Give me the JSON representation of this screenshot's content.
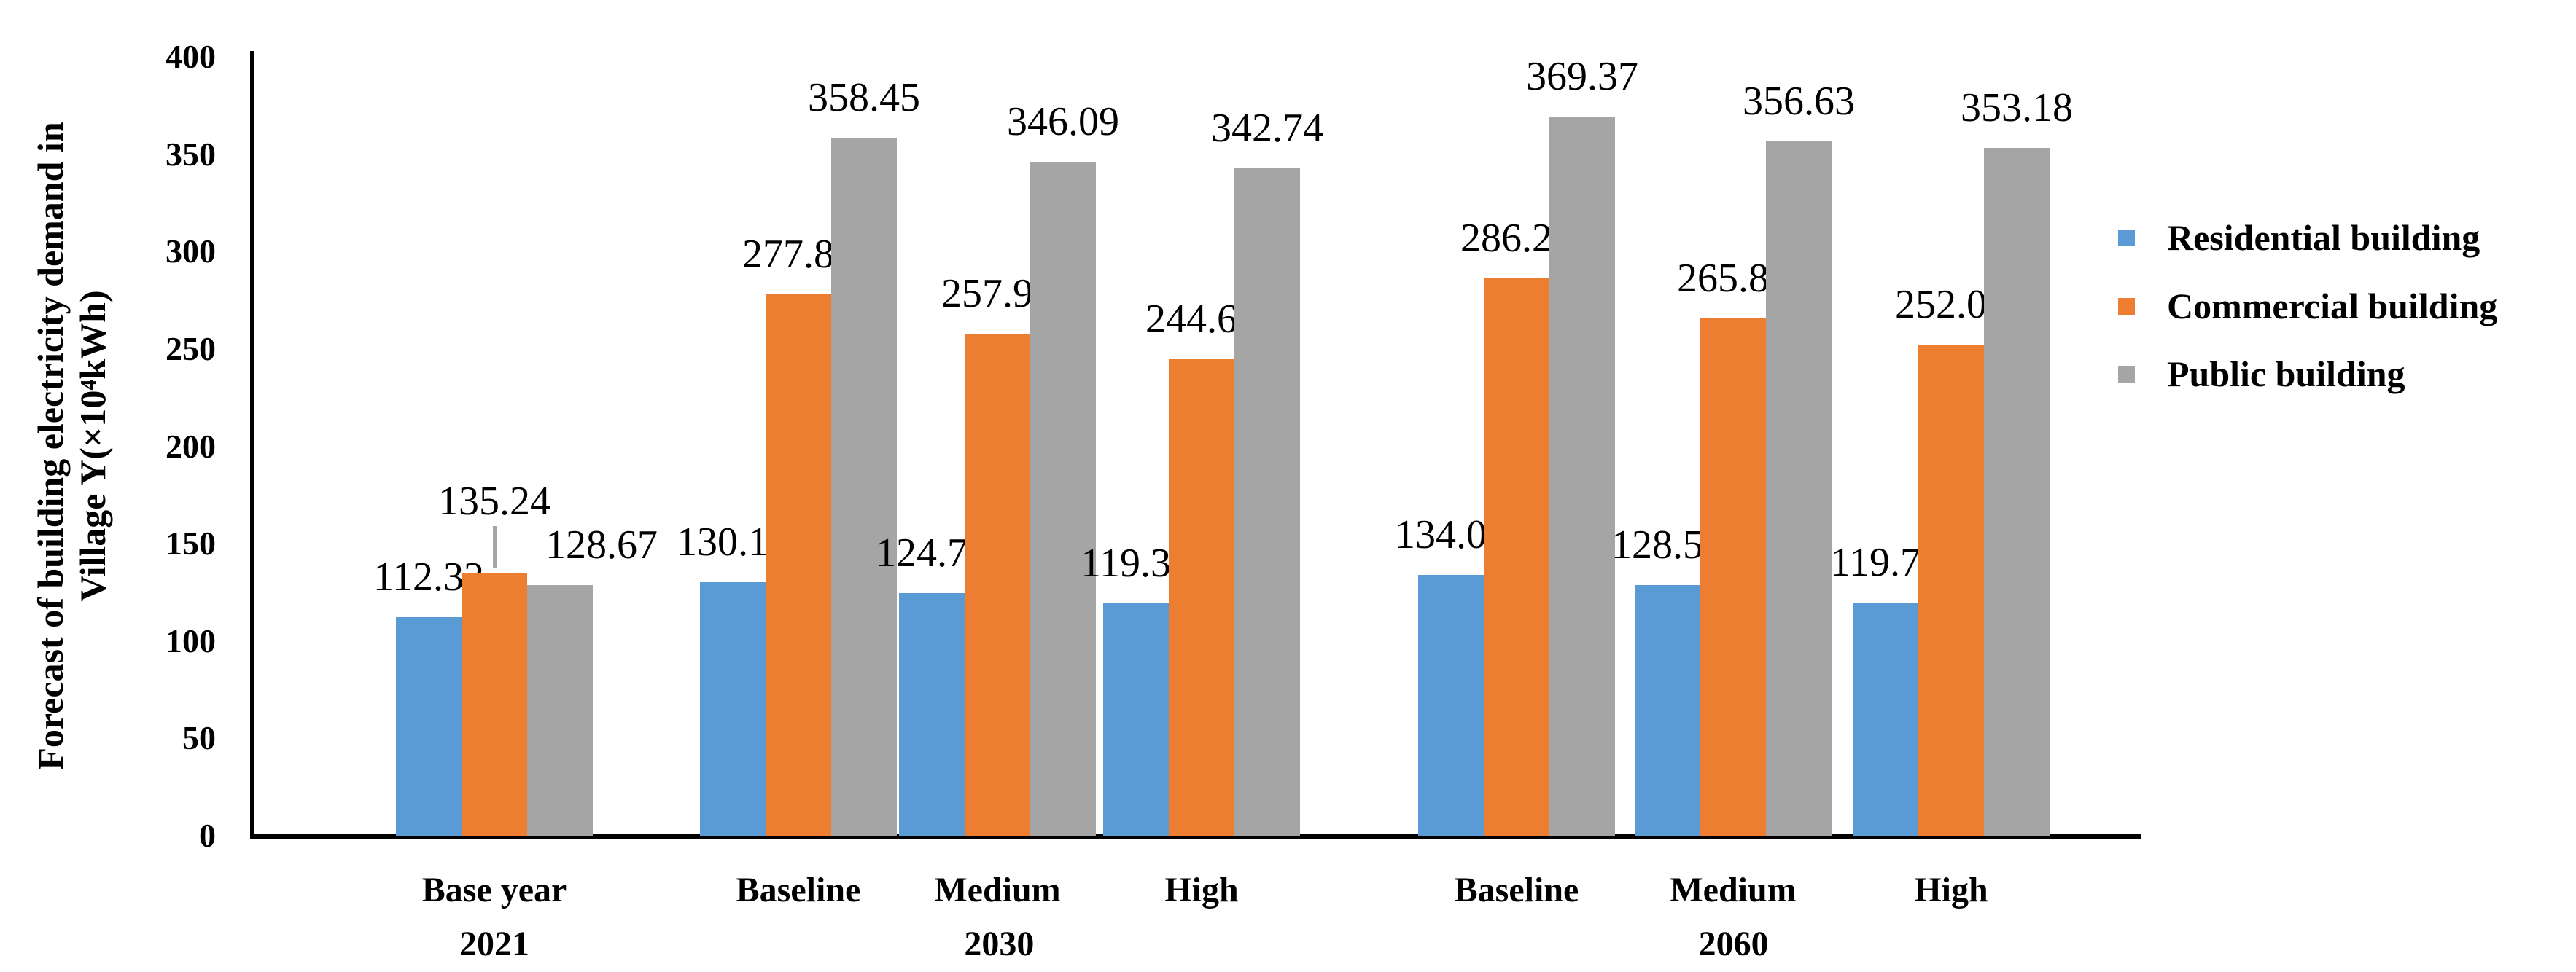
{
  "y_axis": {
    "title_line1": "Forecast of building electricity demand in",
    "title_line2": "Village Y(×10⁴kWh)",
    "ticks": [
      "0",
      "50",
      "100",
      "150",
      "200",
      "250",
      "300",
      "350",
      "400"
    ]
  },
  "legend": {
    "items": [
      {
        "label": "Residential building",
        "color": "#5b9bd5"
      },
      {
        "label": "Commercial building",
        "color": "#ed7d31"
      },
      {
        "label": "Public building",
        "color": "#a5a5a5"
      }
    ]
  },
  "chart_data": {
    "type": "bar",
    "title": "",
    "xlabel": "",
    "ylabel": "Forecast of building electricity demand in Village Y(×10⁴kWh)",
    "ylim": [
      0,
      400
    ],
    "ytick_step": 50,
    "grid": false,
    "legend_position": "right",
    "value_label_decimals": 2,
    "series": [
      {
        "name": "Residential building",
        "color": "#5b9bd5"
      },
      {
        "name": "Commercial building",
        "color": "#ed7d31"
      },
      {
        "name": "Public building",
        "color": "#a5a5a5"
      }
    ],
    "groups": [
      {
        "category": "Base year",
        "year": "2021",
        "values": [
          112.32,
          135.24,
          128.67
        ]
      },
      {
        "category": "Baseline",
        "year": "2030",
        "values": [
          130.12,
          277.83,
          358.45
        ]
      },
      {
        "category": "Medium",
        "year": "2030",
        "values": [
          124.74,
          257.99,
          346.09
        ]
      },
      {
        "category": "High",
        "year": "2030",
        "values": [
          119.37,
          244.61,
          342.74
        ]
      },
      {
        "category": "Baseline",
        "year": "2060",
        "values": [
          134.09,
          286.29,
          369.37
        ]
      },
      {
        "category": "Medium",
        "year": "2060",
        "values": [
          128.54,
          265.84,
          356.63
        ]
      },
      {
        "category": "High",
        "year": "2060",
        "values": [
          119.73,
          252.06,
          353.18
        ]
      }
    ]
  }
}
